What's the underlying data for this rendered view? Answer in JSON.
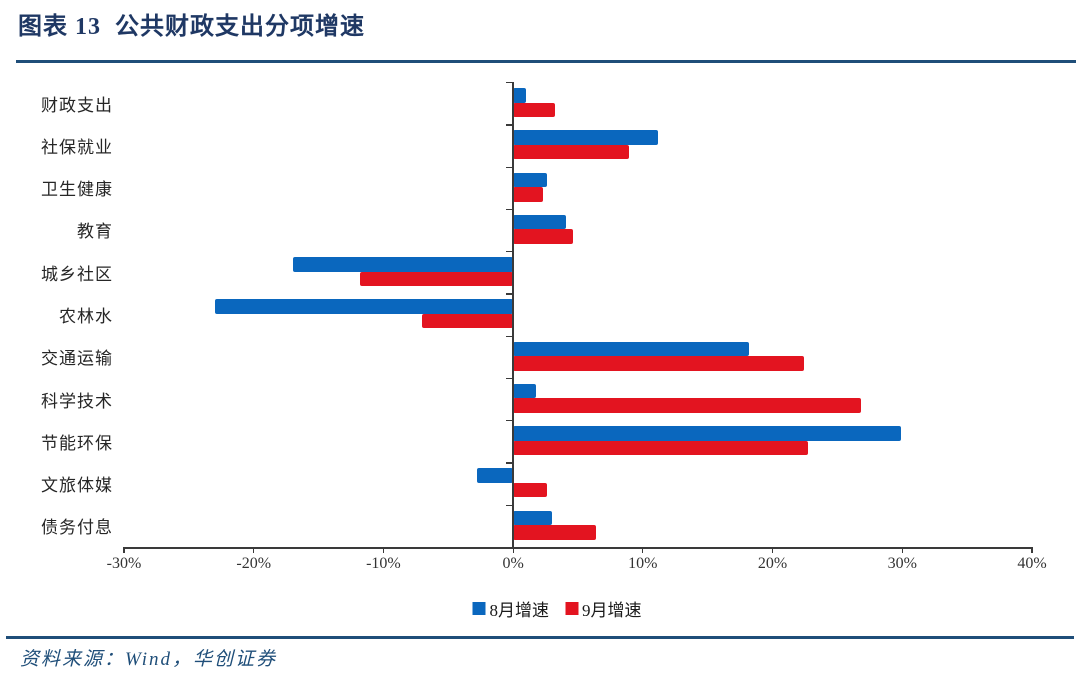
{
  "header": {
    "title": "图表 13  公共财政支出分项增速"
  },
  "chart_data": {
    "type": "bar",
    "orientation": "horizontal",
    "title": "公共财政支出分项增速",
    "categories": [
      "财政支出",
      "社保就业",
      "卫生健康",
      "教育",
      "城乡社区",
      "农林水",
      "交通运输",
      "科学技术",
      "节能环保",
      "文旅体媒",
      "债务付息"
    ],
    "series": [
      {
        "name": "8月增速",
        "color": "#0A67BE",
        "values": [
          1.0,
          11.2,
          2.6,
          4.1,
          -17.0,
          -23.0,
          18.2,
          1.8,
          29.9,
          -2.8,
          3.0
        ]
      },
      {
        "name": "9月增速",
        "color": "#E31420",
        "values": [
          3.2,
          8.9,
          2.3,
          4.6,
          -11.8,
          -7.0,
          22.4,
          26.8,
          22.7,
          2.6,
          6.4
        ]
      }
    ],
    "x_ticks": [
      -30,
      -20,
      -10,
      0,
      10,
      20,
      30,
      40
    ],
    "x_tick_labels": [
      "-30%",
      "-20%",
      "-10%",
      "0%",
      "10%",
      "20%",
      "30%",
      "40%"
    ],
    "xlim": [
      -30,
      40
    ],
    "grid": false,
    "legend_position": "bottom"
  },
  "footer": {
    "source": "资料来源：Wind，华创证券"
  },
  "colors": {
    "title_navy": "#1F3864",
    "rule_navy": "#1F4E79",
    "aug_blue": "#0A67BE",
    "sep_red": "#E31420",
    "axis_gray": "#3a3a3a"
  }
}
